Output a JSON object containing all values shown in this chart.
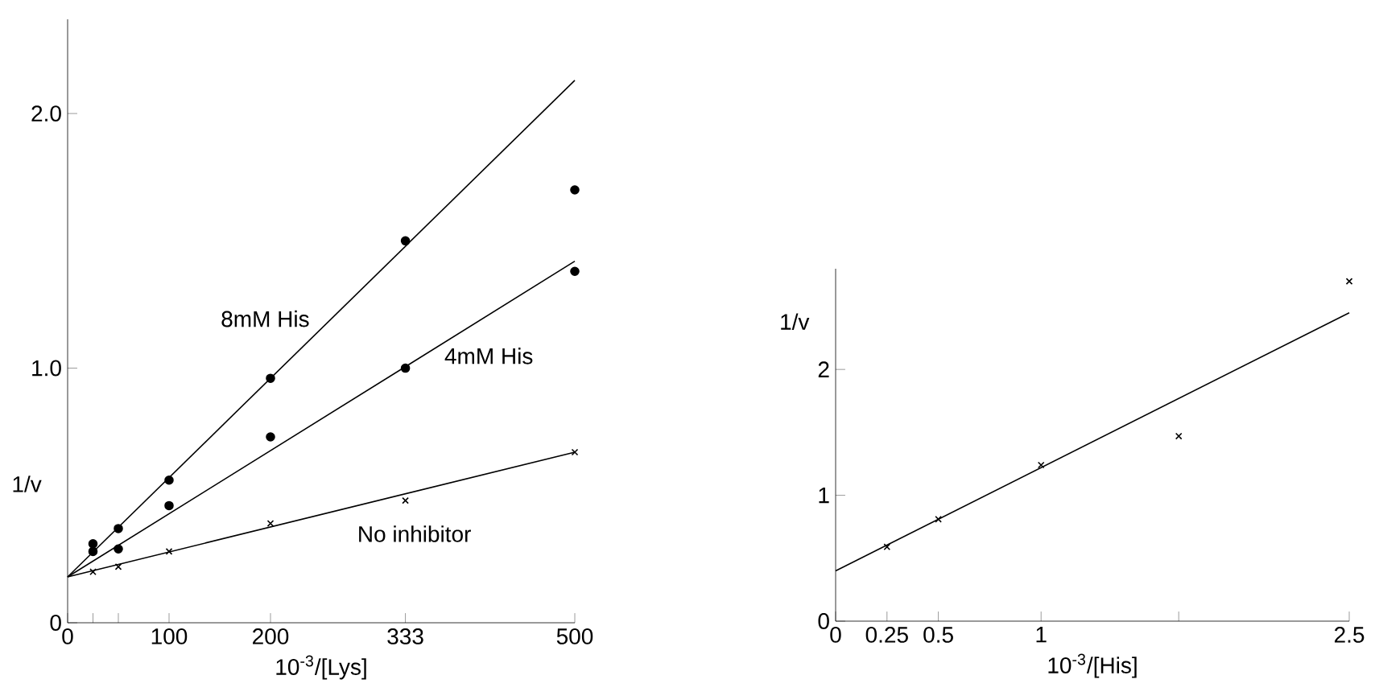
{
  "chart_data": [
    {
      "type": "scatter",
      "xlabel": "10$^{-3}$/[Lys]",
      "ylabel": "1/v",
      "xlim": [
        0,
        500
      ],
      "ylim": [
        0,
        2.37
      ],
      "xticks": [
        0,
        {
          "value": 25,
          "label": null
        },
        {
          "value": 50,
          "label": null
        },
        100,
        200,
        333,
        500
      ],
      "yticks": [
        0,
        {
          "value": 1,
          "label": "1.0"
        },
        {
          "value": 2,
          "label": "2.0"
        }
      ],
      "series": [
        {
          "marker": "cross",
          "color": "#000000",
          "x": [
            25,
            50,
            100,
            200,
            333,
            500
          ],
          "values": [
            0.2,
            0.22,
            0.28,
            0.39,
            0.48,
            0.67
          ]
        },
        {
          "marker": "circle",
          "color": "#000000",
          "x": [
            25,
            50,
            100,
            200,
            333,
            500
          ],
          "values": [
            0.28,
            0.29,
            0.46,
            0.73,
            1.0,
            1.38
          ]
        },
        {
          "marker": "circle",
          "color": "#000000",
          "x": [
            25,
            50,
            100,
            200,
            333,
            500
          ],
          "values": [
            0.31,
            0.37,
            0.56,
            0.96,
            1.5,
            1.7
          ]
        },
        {
          "type": "line",
          "name": "No inhibitor",
          "color": "#000000",
          "x": [
            0,
            500
          ],
          "values": [
            0.18,
            0.67
          ]
        },
        {
          "type": "line",
          "name": "4mM His",
          "color": "#000000",
          "x": [
            0,
            500
          ],
          "values": [
            0.18,
            1.42
          ]
        },
        {
          "type": "line",
          "name": "8mM His",
          "color": "#000000",
          "x": [
            0,
            500
          ],
          "values": [
            0.18,
            2.13
          ]
        }
      ]
    },
    {
      "type": "scatter",
      "xlabel": "10$^{-3}$/[His]",
      "ylabel": "1/v",
      "xlim": [
        0,
        2.5
      ],
      "ylim": [
        0,
        2.8
      ],
      "xticks": [
        0,
        0.25,
        0.5,
        1,
        {
          "value": 1.67,
          "label": null
        },
        2.5
      ],
      "yticks": [
        0,
        1,
        2
      ],
      "series": [
        {
          "marker": "cross",
          "color": "#000000",
          "x": [
            0.25,
            0.5,
            1,
            1.67,
            2.5
          ],
          "values": [
            0.59,
            0.81,
            1.24,
            1.47,
            2.7
          ]
        },
        {
          "type": "line",
          "color": "#000000",
          "x": [
            0,
            2.5
          ],
          "values": [
            0.4,
            2.45
          ]
        }
      ]
    }
  ]
}
